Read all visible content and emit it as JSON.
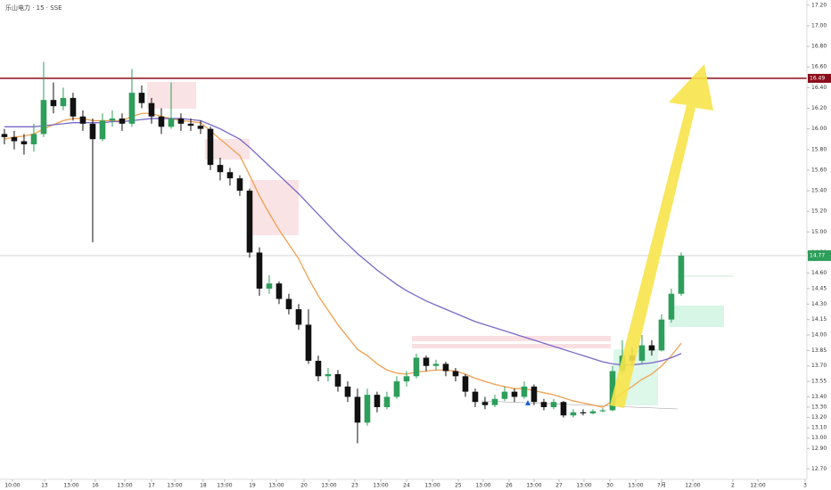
{
  "chart_data": {
    "type": "candlestick",
    "title": "乐山电力 · 15 · SSE",
    "up_color": "#2e9e5b",
    "down_color": "#111111",
    "open": [
      15.95,
      15.92,
      15.88,
      15.85,
      15.95,
      16.28,
      16.22,
      16.3,
      16.12,
      16.05,
      15.9,
      16.08,
      16.1,
      16.05,
      16.35,
      16.25,
      16.12,
      16.02,
      16.1,
      16.05,
      16.03,
      16.0,
      15.65,
      15.58,
      15.52,
      15.4,
      14.8,
      14.45,
      14.5,
      14.35,
      14.25,
      14.1,
      13.75,
      13.6,
      13.62,
      13.5,
      13.4,
      13.15,
      13.42,
      13.3,
      13.4,
      13.55,
      13.6,
      13.78,
      13.7,
      13.72,
      13.65,
      13.6,
      13.45,
      13.35,
      13.32,
      13.38,
      13.45,
      13.4,
      13.5,
      13.35,
      13.3,
      13.35,
      13.22,
      13.25,
      13.24,
      13.26,
      13.27,
      13.65,
      13.8,
      13.75,
      13.9,
      13.85,
      14.15,
      14.4
    ],
    "high": [
      16.0,
      15.98,
      15.95,
      16.05,
      16.65,
      16.45,
      16.4,
      16.35,
      16.18,
      16.1,
      16.15,
      16.18,
      16.15,
      16.58,
      16.42,
      16.3,
      16.2,
      16.45,
      16.15,
      16.1,
      16.08,
      16.02,
      15.72,
      15.62,
      15.55,
      15.42,
      14.85,
      14.58,
      14.52,
      14.4,
      14.3,
      14.25,
      13.8,
      13.68,
      13.66,
      13.55,
      13.48,
      13.48,
      13.45,
      13.45,
      13.6,
      13.65,
      13.82,
      13.8,
      13.76,
      13.74,
      13.68,
      13.62,
      13.48,
      13.4,
      13.42,
      13.5,
      13.48,
      13.55,
      13.52,
      13.38,
      13.38,
      13.36,
      13.28,
      13.28,
      13.28,
      13.29,
      13.7,
      13.95,
      13.88,
      14.0,
      13.95,
      14.2,
      14.45,
      14.8
    ],
    "low": [
      15.85,
      15.8,
      15.75,
      15.78,
      15.92,
      16.15,
      16.18,
      16.08,
      15.98,
      14.9,
      15.88,
      16.02,
      15.98,
      16.02,
      16.2,
      16.05,
      15.95,
      16.0,
      15.98,
      15.98,
      15.95,
      15.6,
      15.5,
      15.45,
      15.35,
      14.75,
      14.38,
      14.4,
      14.3,
      14.2,
      14.05,
      13.72,
      13.55,
      13.55,
      13.45,
      13.35,
      12.95,
      13.12,
      13.25,
      13.28,
      13.38,
      13.5,
      13.58,
      13.65,
      13.66,
      13.6,
      13.55,
      13.4,
      13.3,
      13.28,
      13.3,
      13.36,
      13.35,
      13.38,
      13.32,
      13.27,
      13.28,
      13.2,
      13.2,
      13.22,
      13.23,
      13.25,
      13.26,
      13.62,
      13.7,
      13.72,
      13.8,
      13.84,
      14.12,
      14.38
    ],
    "close": [
      15.92,
      15.88,
      15.85,
      15.95,
      16.28,
      16.22,
      16.3,
      16.12,
      16.05,
      15.9,
      16.08,
      16.1,
      16.05,
      16.35,
      16.25,
      16.12,
      16.02,
      16.1,
      16.05,
      16.03,
      16.0,
      15.65,
      15.58,
      15.52,
      15.4,
      14.8,
      14.45,
      14.5,
      14.35,
      14.25,
      14.1,
      13.75,
      13.6,
      13.62,
      13.5,
      13.4,
      13.15,
      13.42,
      13.3,
      13.4,
      13.55,
      13.6,
      13.78,
      13.7,
      13.72,
      13.65,
      13.6,
      13.45,
      13.35,
      13.32,
      13.38,
      13.45,
      13.4,
      13.5,
      13.35,
      13.3,
      13.35,
      13.22,
      13.25,
      13.24,
      13.26,
      13.27,
      13.65,
      13.8,
      13.75,
      13.9,
      13.85,
      14.15,
      14.4,
      14.77
    ],
    "moving_averages": [
      {
        "color": "#f0a050",
        "values": [
          15.9,
          15.92,
          15.93,
          15.95,
          16.0,
          16.04,
          16.08,
          16.1,
          16.1,
          16.08,
          16.08,
          16.08,
          16.08,
          16.12,
          16.15,
          16.15,
          16.12,
          16.1,
          16.08,
          16.07,
          16.06,
          15.98,
          15.9,
          15.82,
          15.74,
          15.55,
          15.35,
          15.18,
          15.02,
          14.88,
          14.74,
          14.55,
          14.38,
          14.24,
          14.1,
          13.98,
          13.86,
          13.8,
          13.72,
          13.66,
          13.63,
          13.62,
          13.64,
          13.65,
          13.66,
          13.66,
          13.65,
          13.62,
          13.58,
          13.55,
          13.52,
          13.5,
          13.48,
          13.48,
          13.46,
          13.44,
          13.42,
          13.39,
          13.36,
          13.34,
          13.32,
          13.3,
          13.36,
          13.44,
          13.5,
          13.57,
          13.62,
          13.7,
          13.8,
          13.92
        ]
      },
      {
        "color": "#7b68c8",
        "values": [
          16.02,
          16.02,
          16.02,
          16.02,
          16.03,
          16.04,
          16.05,
          16.06,
          16.06,
          16.06,
          16.06,
          16.07,
          16.07,
          16.08,
          16.09,
          16.1,
          16.1,
          16.1,
          16.1,
          16.09,
          16.08,
          16.04,
          16.0,
          15.95,
          15.9,
          15.82,
          15.73,
          15.64,
          15.55,
          15.46,
          15.37,
          15.27,
          15.17,
          15.07,
          14.97,
          14.88,
          14.79,
          14.71,
          14.63,
          14.56,
          14.49,
          14.43,
          14.38,
          14.33,
          14.29,
          14.25,
          14.21,
          14.17,
          14.13,
          14.1,
          14.07,
          14.04,
          14.01,
          13.98,
          13.95,
          13.92,
          13.89,
          13.86,
          13.83,
          13.8,
          13.77,
          13.74,
          13.72,
          13.71,
          13.71,
          13.72,
          13.73,
          13.75,
          13.78,
          13.82
        ]
      }
    ],
    "price_line": 16.49,
    "price_line_color": "#8b0d1a",
    "last_price": 14.77,
    "xlim": [
      -0.45,
      81.82
    ],
    "xticks": [
      {
        "value": 0.82,
        "label": "10:00"
      },
      {
        "value": 4.09,
        "label": "13"
      },
      {
        "value": 6.82,
        "label": "13:00"
      },
      {
        "value": 9.27,
        "label": "16"
      },
      {
        "value": 12.27,
        "label": "13:00"
      },
      {
        "value": 15,
        "label": "17"
      },
      {
        "value": 17.36,
        "label": "13:00"
      },
      {
        "value": 20.27,
        "label": "18"
      },
      {
        "value": 22.45,
        "label": "13:00"
      },
      {
        "value": 25.27,
        "label": "19"
      },
      {
        "value": 27.73,
        "label": "13:00"
      },
      {
        "value": 30.55,
        "label": "20"
      },
      {
        "value": 33.09,
        "label": "13:00"
      },
      {
        "value": 35.73,
        "label": "23"
      },
      {
        "value": 38.36,
        "label": "13:00"
      },
      {
        "value": 41,
        "label": "24"
      },
      {
        "value": 43.64,
        "label": "13:00"
      },
      {
        "value": 46.27,
        "label": "25"
      },
      {
        "value": 48.82,
        "label": "13:00"
      },
      {
        "value": 51.45,
        "label": "26"
      },
      {
        "value": 54,
        "label": "13:00"
      },
      {
        "value": 56.55,
        "label": "27"
      },
      {
        "value": 59.09,
        "label": "13:00"
      },
      {
        "value": 61.73,
        "label": "30"
      },
      {
        "value": 64.36,
        "label": "13:00"
      },
      {
        "value": 67,
        "label": "7月"
      },
      {
        "value": 70.18,
        "label": "12:00"
      },
      {
        "value": 74.27,
        "label": "2"
      },
      {
        "value": 76.82,
        "label": "12:00"
      },
      {
        "value": 81.64,
        "label": "3"
      }
    ],
    "ylim": [
      12.6,
      17.25
    ],
    "yticks": [
      {
        "value": 17.2,
        "label": "17.20"
      },
      {
        "value": 17.0,
        "label": "17.00"
      },
      {
        "value": 16.8,
        "label": "16.80"
      },
      {
        "value": 16.6,
        "label": "16.60"
      },
      {
        "value": 16.4,
        "label": "16.40"
      },
      {
        "value": 16.2,
        "label": "16.20"
      },
      {
        "value": 16.0,
        "label": "16.00"
      },
      {
        "value": 15.8,
        "label": "15.80"
      },
      {
        "value": 15.6,
        "label": "15.60"
      },
      {
        "value": 15.4,
        "label": "15.40"
      },
      {
        "value": 15.2,
        "label": "15.20"
      },
      {
        "value": 15.0,
        "label": "15.00"
      },
      {
        "value": 14.8,
        "label": "14.80"
      },
      {
        "value": 14.6,
        "label": "14.60"
      },
      {
        "value": 14.45,
        "label": "14.45"
      },
      {
        "value": 14.3,
        "label": "14.30"
      },
      {
        "value": 14.15,
        "label": "14.15"
      },
      {
        "value": 14.0,
        "label": "14.00"
      },
      {
        "value": 13.85,
        "label": "13.85"
      },
      {
        "value": 13.7,
        "label": "13.70"
      },
      {
        "value": 13.55,
        "label": "13.55"
      },
      {
        "value": 13.4,
        "label": "13.40"
      },
      {
        "value": 13.3,
        "label": "13.30"
      },
      {
        "value": 13.2,
        "label": "13.20"
      },
      {
        "value": 13.1,
        "label": "13.10"
      },
      {
        "value": 13.0,
        "label": "13.00"
      },
      {
        "value": 12.9,
        "label": "12.90"
      },
      {
        "value": 12.7,
        "label": "12.70"
      }
    ]
  }
}
